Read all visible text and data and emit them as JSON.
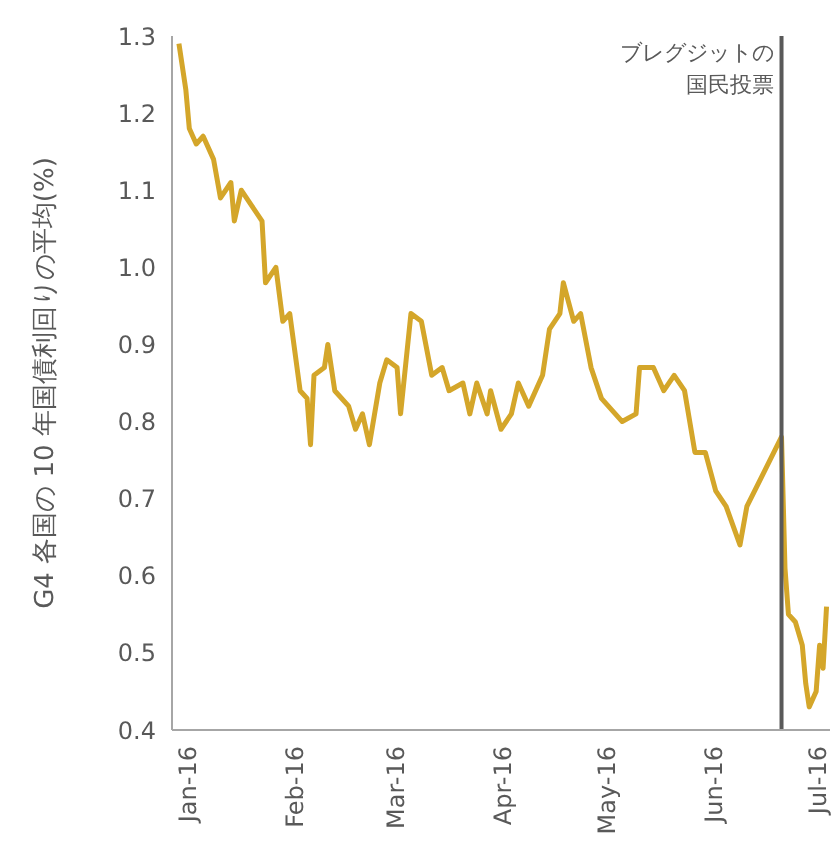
{
  "chart_data": {
    "type": "line",
    "ylabel": "G4 各国の 10 年国債利回りの平均(%)",
    "x": [
      "2016-01-01",
      "2016-01-03",
      "2016-01-04",
      "2016-01-06",
      "2016-01-08",
      "2016-01-11",
      "2016-01-13",
      "2016-01-16",
      "2016-01-17",
      "2016-01-19",
      "2016-01-22",
      "2016-01-25",
      "2016-01-26",
      "2016-01-29",
      "2016-01-31",
      "2016-02-02",
      "2016-02-05",
      "2016-02-07",
      "2016-02-08",
      "2016-02-09",
      "2016-02-12",
      "2016-02-13",
      "2016-02-15",
      "2016-02-19",
      "2016-02-21",
      "2016-02-23",
      "2016-02-25",
      "2016-02-28",
      "2016-03-01",
      "2016-03-04",
      "2016-03-05",
      "2016-03-08",
      "2016-03-11",
      "2016-03-14",
      "2016-03-17",
      "2016-03-19",
      "2016-03-23",
      "2016-03-25",
      "2016-03-27",
      "2016-03-30",
      "2016-03-31",
      "2016-04-03",
      "2016-04-06",
      "2016-04-08",
      "2016-04-11",
      "2016-04-15",
      "2016-04-17",
      "2016-04-20",
      "2016-04-21",
      "2016-04-24",
      "2016-04-26",
      "2016-04-29",
      "2016-05-02",
      "2016-05-06",
      "2016-05-08",
      "2016-05-12",
      "2016-05-13",
      "2016-05-17",
      "2016-05-20",
      "2016-05-23",
      "2016-05-26",
      "2016-05-29",
      "2016-06-01",
      "2016-06-04",
      "2016-06-07",
      "2016-06-11",
      "2016-06-13",
      "2016-06-23",
      "2016-06-24",
      "2016-06-25",
      "2016-06-27",
      "2016-06-29",
      "2016-06-30",
      "2016-07-01",
      "2016-07-03",
      "2016-07-04",
      "2016-07-05",
      "2016-07-06"
    ],
    "series": [
      {
        "color": "#d4a62a",
        "values": [
          1.29,
          1.23,
          1.18,
          1.16,
          1.17,
          1.14,
          1.09,
          1.11,
          1.06,
          1.1,
          1.08,
          1.06,
          0.98,
          1.0,
          0.93,
          0.94,
          0.84,
          0.83,
          0.77,
          0.86,
          0.87,
          0.9,
          0.84,
          0.82,
          0.79,
          0.81,
          0.77,
          0.85,
          0.88,
          0.87,
          0.81,
          0.94,
          0.93,
          0.86,
          0.87,
          0.84,
          0.85,
          0.81,
          0.85,
          0.81,
          0.84,
          0.79,
          0.81,
          0.85,
          0.82,
          0.86,
          0.92,
          0.94,
          0.98,
          0.93,
          0.94,
          0.87,
          0.83,
          0.81,
          0.8,
          0.81,
          0.87,
          0.87,
          0.84,
          0.86,
          0.84,
          0.76,
          0.76,
          0.71,
          0.69,
          0.64,
          0.69,
          0.78,
          0.61,
          0.55,
          0.54,
          0.51,
          0.46,
          0.43,
          0.45,
          0.51,
          0.48,
          0.56
        ]
      }
    ],
    "xlim": [
      "2015-12-30",
      "2016-07-07"
    ],
    "xticks": [
      {
        "value": "2016-01-01",
        "label": "Jan-16"
      },
      {
        "value": "2016-02-01",
        "label": "Feb-16"
      },
      {
        "value": "2016-03-01",
        "label": "Mar-16"
      },
      {
        "value": "2016-04-01",
        "label": "Apr-16"
      },
      {
        "value": "2016-05-01",
        "label": "May-16"
      },
      {
        "value": "2016-06-01",
        "label": "Jun-16"
      },
      {
        "value": "2016-07-01",
        "label": "Jul-16"
      }
    ],
    "ylim": [
      0.4,
      1.3
    ],
    "yticks": [
      0.4,
      0.5,
      0.6,
      0.7,
      0.8,
      0.9,
      {
        "value": 1,
        "label": "1.0"
      },
      1.1,
      1.2,
      1.3
    ],
    "ref_lines": [
      {
        "axis": "x",
        "value": "2016-06-23",
        "label": "ブレグジットの国民投票",
        "color": "#595959"
      }
    ],
    "grid": false,
    "legend": false,
    "marker": "none",
    "line_style": "solid"
  }
}
